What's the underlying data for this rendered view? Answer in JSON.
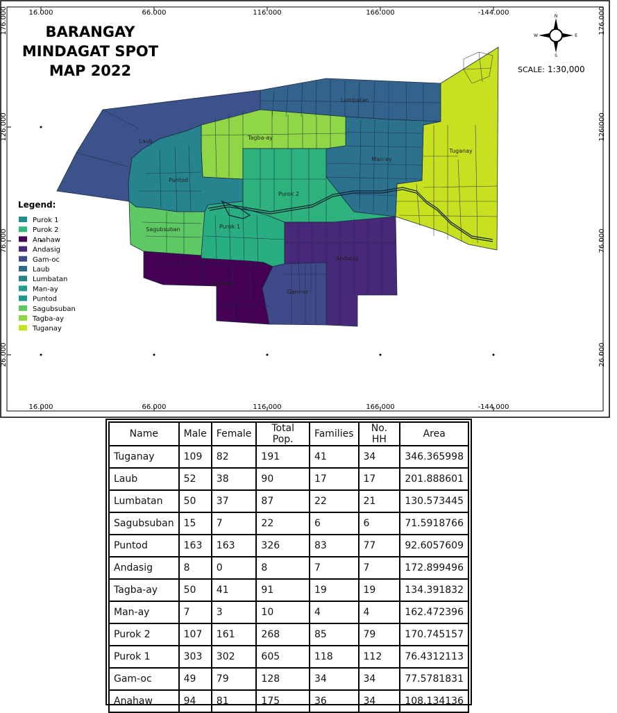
{
  "map": {
    "title_lines": [
      "BARANGAY",
      "MINDAGAT SPOT",
      "MAP 2022"
    ],
    "scale_label": "SCALE:",
    "scale_value": "1:30,000",
    "compass": {
      "n": "N",
      "s": "S",
      "e": "E",
      "w": "W"
    },
    "grid_top": [
      "16.000",
      "66.000",
      "116.000",
      "166.000",
      "-144.000"
    ],
    "grid_bottom": [
      "16.000",
      "66.000",
      "116.000",
      "166.000",
      "-144.000"
    ],
    "grid_left": [
      "176.000",
      "126.000",
      "76.000",
      "26.000"
    ],
    "grid_right": [
      "176.000",
      "126.000",
      "76.000",
      "26.000"
    ],
    "legend_title": "Legend:",
    "legend": [
      {
        "label": "Purok 1",
        "color": "#21908d"
      },
      {
        "label": "Purok 2",
        "color": "#35b779"
      },
      {
        "label": "Anahaw",
        "color": "#440154"
      },
      {
        "label": "Andasig",
        "color": "#482878"
      },
      {
        "label": "Gam-oc",
        "color": "#3e4a89"
      },
      {
        "label": "Laub",
        "color": "#31688e"
      },
      {
        "label": "Lumbatan",
        "color": "#26828e"
      },
      {
        "label": "Man-ay",
        "color": "#1f9e89"
      },
      {
        "label": "Puntod",
        "color": "#1f968b"
      },
      {
        "label": "Sagubsuban",
        "color": "#5ec962"
      },
      {
        "label": "Tagba-ay",
        "color": "#8fd744"
      },
      {
        "label": "Tuganay",
        "color": "#c8e020"
      }
    ],
    "area_labels": {
      "lumbatan": "Lumbatan",
      "laub": "Laub",
      "tagba_ay": "Tagba-ay",
      "man_ay": "Man-ay",
      "tuganay": "Tuganay",
      "puntod": "Puntod",
      "purok2": "Purok 2",
      "sagubsuban": "Sagubsuban",
      "purok1": "Purok 1",
      "andasig": "Andasig",
      "anahaw": "Anahaw",
      "gam_oc": "Gam-oc"
    },
    "colors": {
      "laub": "#3b528b",
      "lumbatan": "#33638d",
      "man_ay": "#2c728e",
      "tuganay": "#c7e020",
      "tagba_ay": "#8fd744",
      "puntod": "#25848e",
      "purok2": "#2db27d",
      "purok2_light": "#4ac16d",
      "sagubsuban": "#5ec962",
      "purok1": "#28ae80",
      "andasig": "#482878",
      "anahaw": "#440154",
      "gam_oc": "#3e4a89"
    }
  },
  "table": {
    "headers": [
      "Name",
      "Male",
      "Female",
      "Total Pop.",
      "Families",
      "No. HH",
      "Area"
    ],
    "rows": [
      [
        "Tuganay",
        "109",
        "82",
        "191",
        "41",
        "34",
        "346.365998"
      ],
      [
        "Laub",
        "52",
        "38",
        "90",
        "17",
        "17",
        "201.888601"
      ],
      [
        "Lumbatan",
        "50",
        "37",
        "87",
        "22",
        "21",
        "130.573445"
      ],
      [
        "Sagubsuban",
        "15",
        "7",
        "22",
        "6",
        "6",
        "71.5918766"
      ],
      [
        "Puntod",
        "163",
        "163",
        "326",
        "83",
        "77",
        "92.6057609"
      ],
      [
        "Andasig",
        "8",
        "0",
        "8",
        "7",
        "7",
        "172.899496"
      ],
      [
        "Tagba-ay",
        "50",
        "41",
        "91",
        "19",
        "19",
        "134.391832"
      ],
      [
        "Man-ay",
        "7",
        "3",
        "10",
        "4",
        "4",
        "162.472396"
      ],
      [
        "Purok 2",
        "107",
        "161",
        "268",
        "85",
        "79",
        "170.745157"
      ],
      [
        "Purok 1",
        "303",
        "302",
        "605",
        "118",
        "112",
        "76.4312113"
      ],
      [
        "Gam-oc",
        "49",
        "79",
        "128",
        "34",
        "34",
        "77.5781831"
      ],
      [
        "Anahaw",
        "94",
        "81",
        "175",
        "36",
        "34",
        "108.134136"
      ]
    ]
  }
}
